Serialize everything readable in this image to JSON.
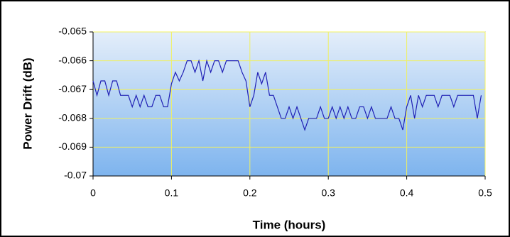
{
  "chart_data": {
    "type": "line",
    "x_label": "Time (hours)",
    "y_label": "Power Drift (dB)",
    "x": [
      0,
      0.005,
      0.01,
      0.015,
      0.02,
      0.025,
      0.03,
      0.035,
      0.04,
      0.045,
      0.05,
      0.055,
      0.06,
      0.065,
      0.07,
      0.075,
      0.08,
      0.085,
      0.09,
      0.095,
      0.1,
      0.105,
      0.11,
      0.115,
      0.12,
      0.125,
      0.13,
      0.135,
      0.14,
      0.145,
      0.15,
      0.155,
      0.16,
      0.165,
      0.17,
      0.175,
      0.18,
      0.185,
      0.19,
      0.195,
      0.2,
      0.205,
      0.21,
      0.215,
      0.22,
      0.225,
      0.23,
      0.235,
      0.24,
      0.245,
      0.25,
      0.255,
      0.26,
      0.265,
      0.27,
      0.275,
      0.28,
      0.285,
      0.29,
      0.295,
      0.3,
      0.305,
      0.31,
      0.315,
      0.32,
      0.325,
      0.33,
      0.335,
      0.34,
      0.345,
      0.35,
      0.355,
      0.36,
      0.365,
      0.37,
      0.375,
      0.38,
      0.385,
      0.39,
      0.395,
      0.4,
      0.405,
      0.41,
      0.415,
      0.42,
      0.425,
      0.43,
      0.435,
      0.44,
      0.445,
      0.45,
      0.455,
      0.46,
      0.465,
      0.47,
      0.475,
      0.48,
      0.485,
      0.49,
      0.495
    ],
    "series": [
      {
        "color": "#1f1fb4",
        "values": [
          -0.0667,
          -0.0672,
          -0.0667,
          -0.0667,
          -0.0672,
          -0.0667,
          -0.0667,
          -0.0672,
          -0.0672,
          -0.0672,
          -0.0676,
          -0.0672,
          -0.0676,
          -0.0672,
          -0.0676,
          -0.0676,
          -0.0672,
          -0.0672,
          -0.0676,
          -0.0676,
          -0.0668,
          -0.0664,
          -0.0667,
          -0.0664,
          -0.066,
          -0.066,
          -0.0664,
          -0.066,
          -0.0667,
          -0.066,
          -0.0664,
          -0.066,
          -0.066,
          -0.0664,
          -0.066,
          -0.066,
          -0.066,
          -0.066,
          -0.0664,
          -0.0667,
          -0.0676,
          -0.0672,
          -0.0664,
          -0.0668,
          -0.0664,
          -0.0672,
          -0.0672,
          -0.0676,
          -0.068,
          -0.068,
          -0.0676,
          -0.068,
          -0.0676,
          -0.068,
          -0.0684,
          -0.068,
          -0.068,
          -0.068,
          -0.0676,
          -0.068,
          -0.068,
          -0.0676,
          -0.068,
          -0.0676,
          -0.068,
          -0.0676,
          -0.068,
          -0.068,
          -0.0676,
          -0.0676,
          -0.068,
          -0.0676,
          -0.068,
          -0.068,
          -0.068,
          -0.068,
          -0.0676,
          -0.068,
          -0.068,
          -0.0684,
          -0.0676,
          -0.0672,
          -0.068,
          -0.0672,
          -0.0676,
          -0.0672,
          -0.0672,
          -0.0672,
          -0.0676,
          -0.0672,
          -0.0672,
          -0.0672,
          -0.0676,
          -0.0672,
          -0.0672,
          -0.0672,
          -0.0672,
          -0.0672,
          -0.068,
          -0.0672
        ]
      }
    ],
    "xlim": [
      0,
      0.5
    ],
    "xticks": [
      0,
      0.1,
      0.2,
      0.3,
      0.4,
      0.5
    ],
    "ylim": [
      -0.07,
      -0.065
    ],
    "yticks": [
      -0.065,
      -0.066,
      -0.067,
      -0.068,
      -0.069,
      -0.07
    ],
    "grid": true,
    "grid_color": "#f0f060"
  }
}
